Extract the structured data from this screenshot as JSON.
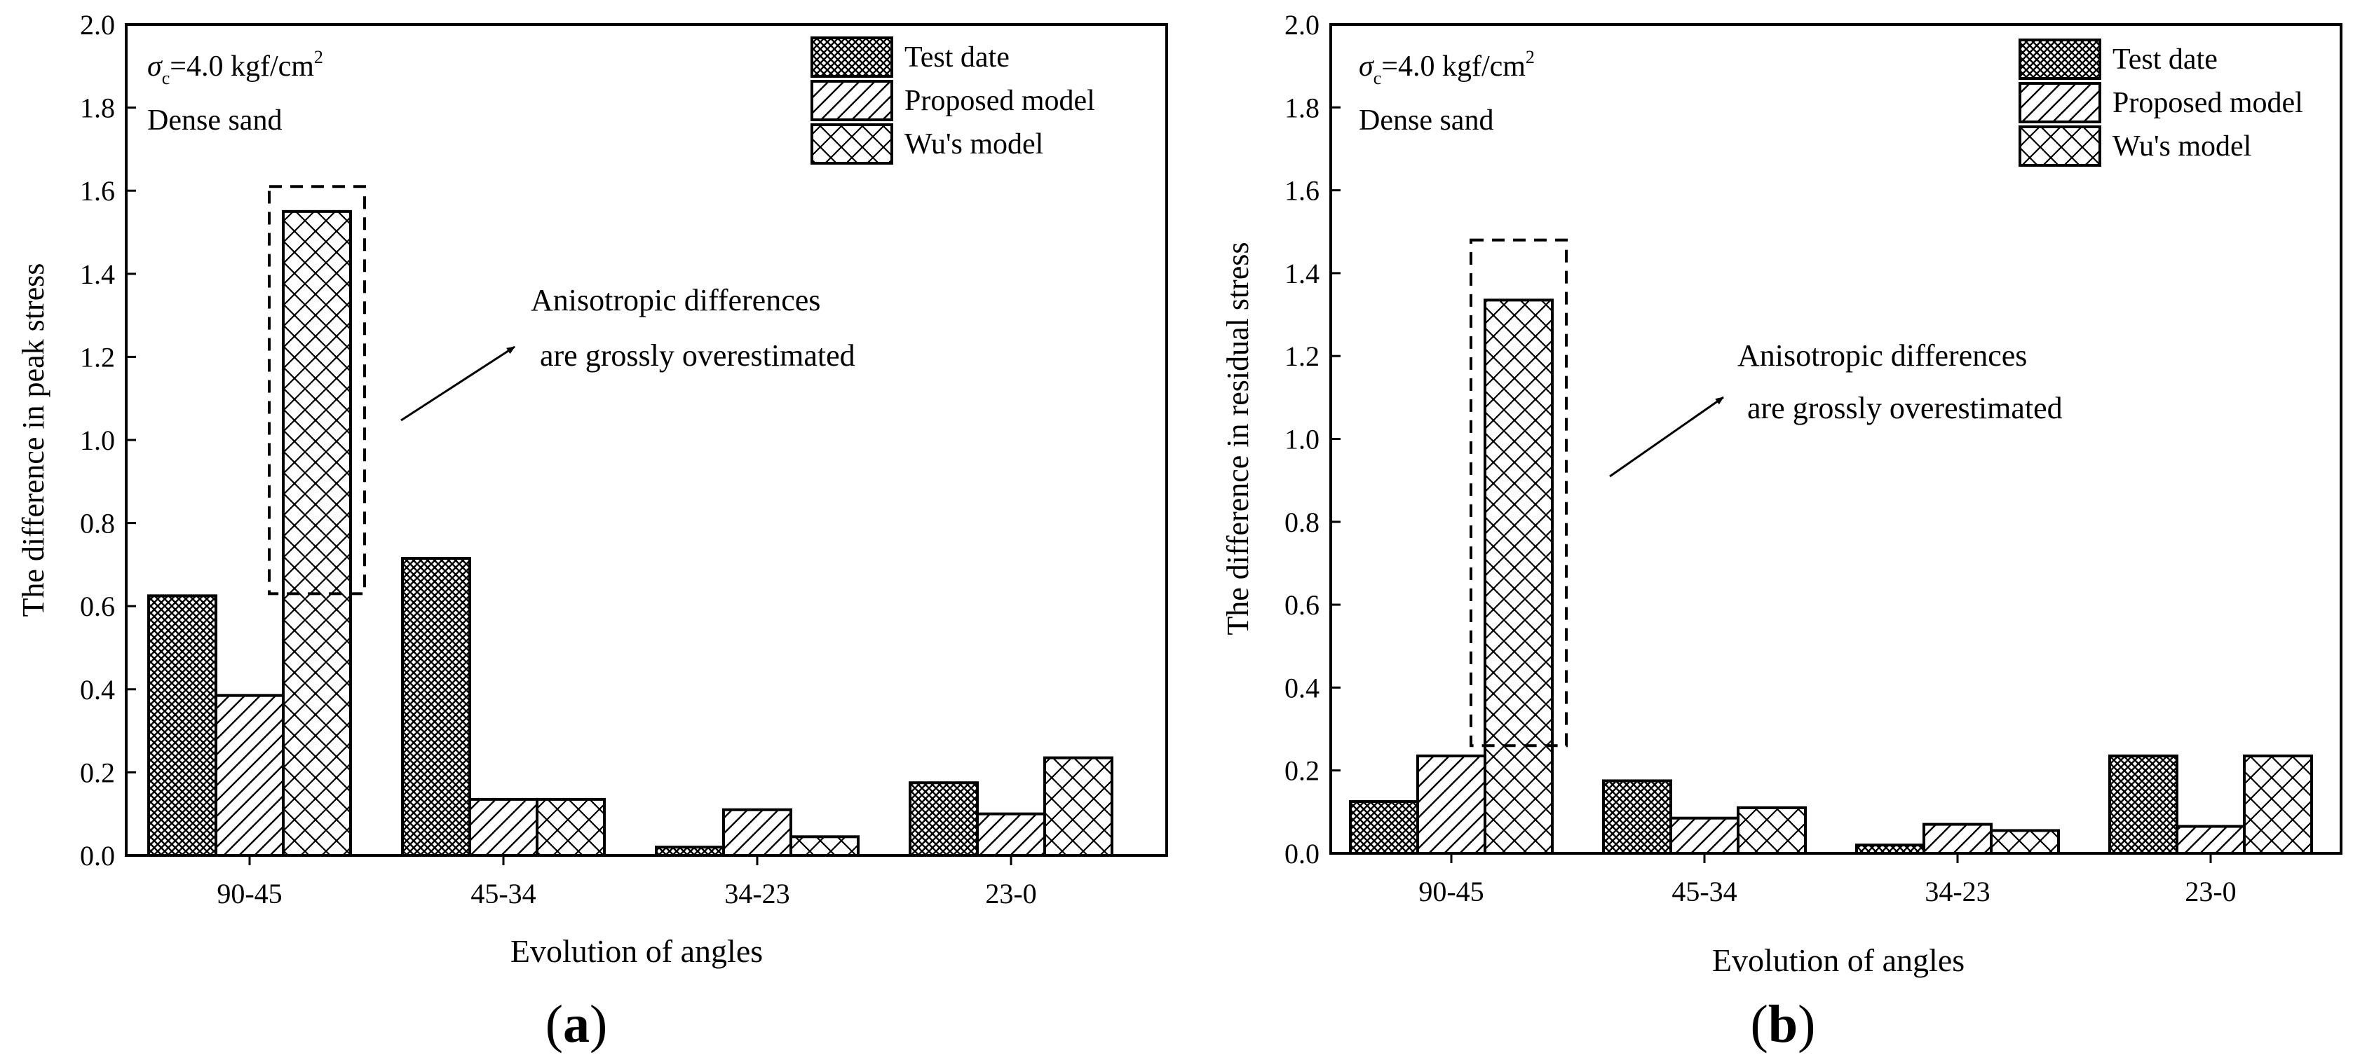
{
  "chart_data": [
    {
      "type": "bar",
      "panel_label": "(a)",
      "panel_letter": "a",
      "ylabel": "The difference in peak stress",
      "xlabel": "Evolution of angles",
      "categories": [
        "90-45",
        "45-34",
        "34-23",
        "23-0"
      ],
      "series": [
        {
          "name": "Test date",
          "pattern": "crosshatch-dense",
          "values": [
            0.625,
            0.715,
            0.02,
            0.175
          ]
        },
        {
          "name": "Proposed model",
          "pattern": "diagonal",
          "values": [
            0.385,
            0.135,
            0.11,
            0.1
          ]
        },
        {
          "name": "Wu's model",
          "pattern": "crosshatch-large",
          "values": [
            1.55,
            0.135,
            0.045,
            0.235
          ]
        }
      ],
      "ylim": [
        0.0,
        2.0
      ],
      "yticks": [
        "0.0",
        "0.2",
        "0.4",
        "0.6",
        "0.8",
        "1.0",
        "1.2",
        "1.4",
        "1.6",
        "1.8",
        "2.0"
      ],
      "condition_sigma": "σ",
      "condition_sub": "c",
      "condition_value": "=4.0 kgf/cm",
      "condition_sup": "2",
      "material": "Dense sand",
      "annotation_line1": "Anisotropic differences",
      "annotation_line2": "are grossly overestimated",
      "highlight_range": [
        0.63,
        1.61
      ]
    },
    {
      "type": "bar",
      "panel_label": "(b)",
      "panel_letter": "b",
      "ylabel": "The difference in residual stress",
      "xlabel": "Evolution of angles",
      "categories": [
        "90-45",
        "45-34",
        "34-23",
        "23-0"
      ],
      "series": [
        {
          "name": "Test date",
          "pattern": "crosshatch-dense",
          "values": [
            0.125,
            0.175,
            0.02,
            0.235
          ]
        },
        {
          "name": "Proposed model",
          "pattern": "diagonal",
          "values": [
            0.235,
            0.085,
            0.07,
            0.065
          ]
        },
        {
          "name": "Wu's model",
          "pattern": "crosshatch-large",
          "values": [
            1.335,
            0.11,
            0.055,
            0.235
          ]
        }
      ],
      "ylim": [
        0.0,
        2.0
      ],
      "yticks": [
        "0.0",
        "0.2",
        "0.4",
        "0.6",
        "0.8",
        "1.0",
        "1.2",
        "1.4",
        "1.6",
        "1.8",
        "2.0"
      ],
      "condition_sigma": "σ",
      "condition_sub": "c",
      "condition_value": "=4.0 kgf/cm",
      "condition_sup": "2",
      "material": "Dense sand",
      "annotation_line1": "Anisotropic differences",
      "annotation_line2": "are grossly overestimated",
      "highlight_range": [
        0.26,
        1.48
      ]
    }
  ]
}
